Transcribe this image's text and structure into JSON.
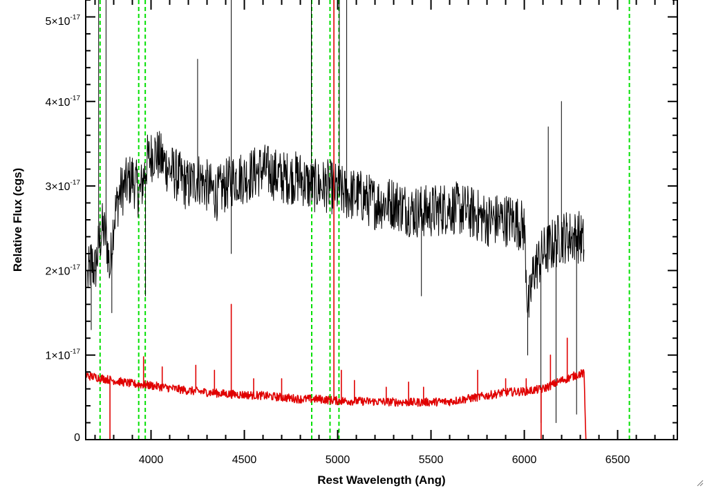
{
  "chart_data": {
    "type": "line",
    "xlabel": "Rest Wavelength (Ang)",
    "ylabel": "Relative Flux (cgs)",
    "xlim": [
      3650,
      6820
    ],
    "ylim": [
      0,
      5.2e-17
    ],
    "x_ticks": [
      4000,
      4500,
      5000,
      5500,
      6000,
      6500
    ],
    "x_tick_labels": [
      "4000",
      "4500",
      "5000",
      "5500",
      "6000",
      "6500"
    ],
    "y_ticks": [
      0,
      1e-17,
      2e-17,
      3e-17,
      4e-17,
      5e-17
    ],
    "y_tick_labels": [
      {
        "mantissa": "0",
        "exponent": ""
      },
      {
        "mantissa": "1×10",
        "exponent": "-17"
      },
      {
        "mantissa": "2×10",
        "exponent": "-17"
      },
      {
        "mantissa": "3×10",
        "exponent": "-17"
      },
      {
        "mantissa": "4×10",
        "exponent": "-17"
      },
      {
        "mantissa": "5×10",
        "exponent": "-17"
      }
    ],
    "grid": false,
    "colors": {
      "spectrum": "#000000",
      "model": "#e00000",
      "lines": "#00e000",
      "axes": "#000000"
    },
    "reference_lines_x": [
      3727,
      3934,
      3969,
      4861,
      4959,
      5007,
      6563
    ],
    "series": [
      {
        "role": "observed spectrum",
        "color": "#000000",
        "x": [
          3660,
          3680,
          3700,
          3720,
          3740,
          3760,
          3780,
          3800,
          3830,
          3860,
          3900,
          3940,
          3980,
          4020,
          4060,
          4100,
          4150,
          4200,
          4250,
          4300,
          4350,
          4400,
          4450,
          4500,
          4600,
          4700,
          4800,
          4850,
          4900,
          4950,
          5050,
          5100,
          5200,
          5300,
          5400,
          5500,
          5600,
          5700,
          5800,
          5900,
          5950,
          6000,
          6020,
          6050,
          6100,
          6150,
          6200,
          6250,
          6300,
          6320
        ],
        "y": [
          1.9e-17,
          2.1e-17,
          2e-17,
          2.3e-17,
          2.5e-17,
          2.4e-17,
          2e-17,
          2.6e-17,
          2.9e-17,
          3e-17,
          3.1e-17,
          2.9e-17,
          3.3e-17,
          3.4e-17,
          3.3e-17,
          3.2e-17,
          3.1e-17,
          3e-17,
          3.1e-17,
          3e-17,
          2.9e-17,
          3e-17,
          3.1e-17,
          3.1e-17,
          3.2e-17,
          3.1e-17,
          3.1e-17,
          3e-17,
          3e-17,
          3e-17,
          2.9e-17,
          2.9e-17,
          2.8e-17,
          2.8e-17,
          2.7e-17,
          2.7e-17,
          2.75e-17,
          2.7e-17,
          2.6e-17,
          2.6e-17,
          2.6e-17,
          2.5e-17,
          1.5e-17,
          2e-17,
          2.2e-17,
          2.3e-17,
          2.4e-17,
          2.4e-17,
          2.4e-17,
          2.3e-17
        ],
        "noise": 3.2e-18,
        "spikes": [
          {
            "x": 3680,
            "y": 1.3e-17
          },
          {
            "x": 3720,
            "y": 5.2e-17
          },
          {
            "x": 3760,
            "y": 5.2e-17
          },
          {
            "x": 3790,
            "y": 1.5e-17
          },
          {
            "x": 3970,
            "y": 1.7e-17
          },
          {
            "x": 4250,
            "y": 4.5e-17
          },
          {
            "x": 4430,
            "y": 5.2e-17
          },
          {
            "x": 4430,
            "y": 2.2e-17
          },
          {
            "x": 4860,
            "y": 5.2e-17
          },
          {
            "x": 5010,
            "y": 5.2e-17
          },
          {
            "x": 5050,
            "y": 5.2e-17
          },
          {
            "x": 5450,
            "y": 1.7e-17
          },
          {
            "x": 6020,
            "y": 1e-17
          },
          {
            "x": 6090,
            "y": 2e-18
          },
          {
            "x": 6130,
            "y": 3.7e-17
          },
          {
            "x": 6170,
            "y": 2e-18
          },
          {
            "x": 6200,
            "y": 4e-17
          },
          {
            "x": 6280,
            "y": 3e-18
          }
        ]
      },
      {
        "role": "model fit",
        "color": "#e00000",
        "x": [
          3650,
          3700,
          3800,
          3900,
          4000,
          4200,
          4400,
          4600,
          4800,
          4900,
          5000,
          5200,
          5400,
          5600,
          5800,
          5900,
          6000,
          6100,
          6200,
          6300,
          6320,
          6330,
          6820
        ],
        "y": [
          7.6e-18,
          7.4e-18,
          7e-18,
          6.6e-18,
          6.4e-18,
          5.8e-18,
          5.4e-18,
          5.2e-18,
          4.8e-18,
          4.8e-18,
          4.6e-18,
          4.5e-18,
          4.4e-18,
          4.5e-18,
          5.2e-18,
          5.6e-18,
          5.7e-18,
          6e-18,
          7e-18,
          7.8e-18,
          7.8e-18,
          0.0,
          0.0
        ],
        "noise": 5e-19,
        "spikes": [
          {
            "x": 3780,
            "y": 0.0
          },
          {
            "x": 3960,
            "y": 9.8e-18
          },
          {
            "x": 4060,
            "y": 8.6e-18
          },
          {
            "x": 4240,
            "y": 8.8e-18
          },
          {
            "x": 4340,
            "y": 8.2e-18
          },
          {
            "x": 4430,
            "y": 1.6e-17
          },
          {
            "x": 4550,
            "y": 7.2e-18
          },
          {
            "x": 4700,
            "y": 7.2e-18
          },
          {
            "x": 4980,
            "y": 5.2e-17
          },
          {
            "x": 5020,
            "y": 8.2e-18
          },
          {
            "x": 5090,
            "y": 7e-18
          },
          {
            "x": 5260,
            "y": 6.2e-18
          },
          {
            "x": 5380,
            "y": 6.8e-18
          },
          {
            "x": 5460,
            "y": 6.2e-18
          },
          {
            "x": 5750,
            "y": 8.2e-18
          },
          {
            "x": 5900,
            "y": 7.2e-18
          },
          {
            "x": 6010,
            "y": 7.2e-18
          },
          {
            "x": 6090,
            "y": 0.0
          },
          {
            "x": 6140,
            "y": 1e-17
          },
          {
            "x": 6230,
            "y": 1.2e-17
          }
        ]
      }
    ]
  }
}
